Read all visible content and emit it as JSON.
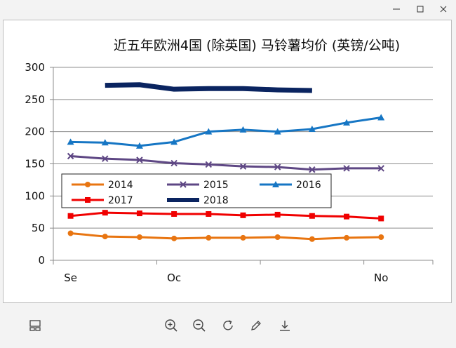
{
  "window": {
    "controls": [
      {
        "name": "minimize-button",
        "icon": "minimize-icon"
      },
      {
        "name": "maximize-button",
        "icon": "maximize-icon"
      },
      {
        "name": "close-button",
        "icon": "close-icon"
      }
    ]
  },
  "toolbar": {
    "icons": [
      "gallery-icon",
      "zoom-in-icon",
      "zoom-out-icon",
      "rotate-icon",
      "edit-icon",
      "download-icon"
    ]
  },
  "chart_data": {
    "type": "line",
    "title": "近五年欧洲4国 (除英国) 马铃薯均价 (英镑/公吨)",
    "xlabel": "",
    "ylabel": "",
    "categories": [
      "Se",
      "",
      "",
      "Oc",
      "",
      "",
      "",
      "",
      "",
      "No",
      ""
    ],
    "ylim": [
      0,
      300
    ],
    "yticks": [
      "0",
      "50",
      "100",
      "150",
      "200",
      "250",
      "300"
    ],
    "grid": true,
    "legend": "inside-left",
    "series": [
      {
        "name": "2014",
        "color": "#E87511",
        "marker": "circle",
        "width": 3,
        "values": [
          42,
          37,
          36,
          34,
          35,
          35,
          36,
          33,
          35,
          36,
          null
        ]
      },
      {
        "name": "2015",
        "color": "#5E4784",
        "marker": "x",
        "width": 3,
        "values": [
          162,
          158,
          156,
          151,
          149,
          146,
          145,
          141,
          143,
          143,
          null
        ]
      },
      {
        "name": "2016",
        "color": "#1676C4",
        "marker": "triangle",
        "width": 3,
        "values": [
          184,
          183,
          178,
          184,
          200,
          203,
          200,
          204,
          214,
          222,
          null
        ]
      },
      {
        "name": "2017",
        "color": "#F00000",
        "marker": "square",
        "width": 3,
        "values": [
          69,
          74,
          73,
          72,
          72,
          70,
          71,
          69,
          68,
          65,
          null
        ]
      },
      {
        "name": "2018",
        "color": "#0A2460",
        "marker": "none",
        "width": 7,
        "values": [
          null,
          272,
          273,
          266,
          267,
          267,
          265,
          264,
          null,
          null,
          null
        ]
      }
    ]
  }
}
